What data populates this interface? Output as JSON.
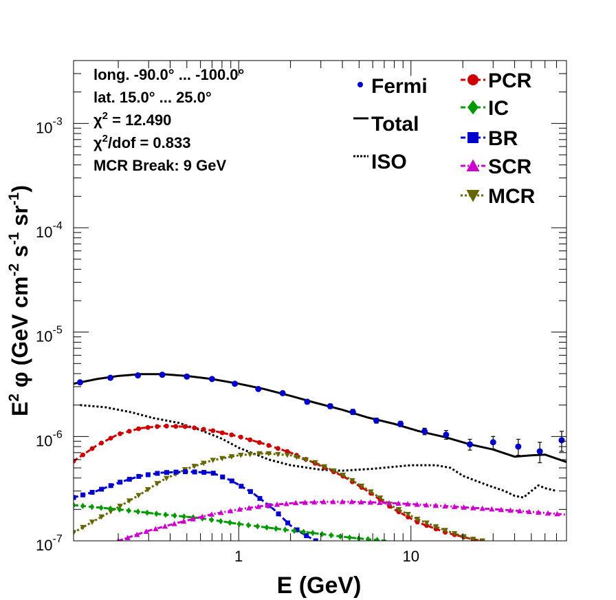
{
  "chart_data": {
    "type": "line",
    "xlabel": "E (GeV)",
    "ylabel_parts": [
      "E",
      "2",
      " φ (GeV cm",
      "-2",
      " s",
      "-1",
      " sr",
      "-1",
      ")"
    ],
    "xscale": "log",
    "yscale": "log",
    "xlim": [
      0.11,
      80
    ],
    "ylim": [
      1e-07,
      0.004
    ],
    "x_tick_labels": [
      {
        "x": 1,
        "label": "1"
      },
      {
        "x": 10,
        "label": "10"
      }
    ],
    "y_tick_labels": [
      {
        "y": 1e-07,
        "base": "10",
        "exp": "-7"
      },
      {
        "y": 1e-06,
        "base": "10",
        "exp": "-6"
      },
      {
        "y": 1e-05,
        "base": "10",
        "exp": "-5"
      },
      {
        "y": 0.0001,
        "base": "10",
        "exp": "-4"
      },
      {
        "y": 0.001,
        "base": "10",
        "exp": "-3"
      }
    ],
    "info_lines": [
      {
        "text": "long. -90.0° ... -100.0°"
      },
      {
        "text": "lat. 15.0° ... 25.0°"
      },
      {
        "text": "χ",
        "sup": "2",
        "rest": " = 12.490"
      },
      {
        "text": "χ",
        "sup": "2",
        "rest": "/dof = 0.833"
      },
      {
        "text": "MCR Break:  9 GeV"
      }
    ],
    "legend_left": [
      {
        "label": "Fermi",
        "style": "dot",
        "color": "#0000cc"
      },
      {
        "label": "Total",
        "style": "solid",
        "color": "#000000"
      },
      {
        "label": "ISO",
        "style": "dotted",
        "color": "#000000"
      }
    ],
    "legend_right": [
      {
        "label": "PCR",
        "style": "circle",
        "color": "#cc0000"
      },
      {
        "label": "IC",
        "style": "diamond",
        "color": "#009900"
      },
      {
        "label": "BR",
        "style": "square",
        "color": "#0000cc"
      },
      {
        "label": "SCR",
        "style": "triangle-up",
        "color": "#cc00cc"
      },
      {
        "label": "MCR",
        "style": "triangle-down",
        "color": "#666600"
      }
    ],
    "fermi": {
      "name": "Fermi",
      "color": "#0000cc",
      "points": [
        {
          "x": 0.12,
          "y": 3.3e-06,
          "err": 1e-07
        },
        {
          "x": 0.18,
          "y": 3.65e-06,
          "err": 1e-07
        },
        {
          "x": 0.26,
          "y": 3.85e-06,
          "err": 1e-07
        },
        {
          "x": 0.36,
          "y": 3.9e-06,
          "err": 1e-07
        },
        {
          "x": 0.5,
          "y": 3.75e-06,
          "err": 1e-07
        },
        {
          "x": 0.7,
          "y": 3.55e-06,
          "err": 1e-07
        },
        {
          "x": 0.95,
          "y": 3.2e-06,
          "err": 1e-07
        },
        {
          "x": 1.3,
          "y": 2.85e-06,
          "err": 1e-07
        },
        {
          "x": 1.8,
          "y": 2.6e-06,
          "err": 1e-07
        },
        {
          "x": 2.5,
          "y": 2.15e-06,
          "err": 1e-07
        },
        {
          "x": 3.4,
          "y": 1.95e-06,
          "err": 1e-07
        },
        {
          "x": 4.6,
          "y": 1.72e-06,
          "err": 1e-07
        },
        {
          "x": 6.3,
          "y": 1.42e-06,
          "err": 8e-08
        },
        {
          "x": 8.7,
          "y": 1.32e-06,
          "err": 8e-08
        },
        {
          "x": 12,
          "y": 1.12e-06,
          "err": 8e-08
        },
        {
          "x": 16,
          "y": 1.04e-06,
          "err": 1e-07
        },
        {
          "x": 22,
          "y": 8.4e-07,
          "err": 1e-07
        },
        {
          "x": 30,
          "y": 8.8e-07,
          "err": 1.2e-07
        },
        {
          "x": 42,
          "y": 8e-07,
          "err": 1.4e-07
        },
        {
          "x": 56,
          "y": 7.2e-07,
          "err": 1.6e-07
        },
        {
          "x": 75,
          "y": 9.2e-07,
          "err": 2e-07
        }
      ]
    },
    "series": [
      {
        "name": "Total",
        "color": "#000000",
        "dash": "",
        "width": 3,
        "marker": "none",
        "x": [
          0.11,
          0.15,
          0.2,
          0.27,
          0.36,
          0.5,
          0.7,
          1.0,
          1.4,
          2.0,
          2.8,
          4.0,
          5.6,
          8.0,
          11,
          16,
          22,
          30,
          40,
          50,
          60,
          80
        ],
        "y": [
          3.2e-06,
          3.55e-06,
          3.8e-06,
          3.95e-06,
          3.95e-06,
          3.8e-06,
          3.55e-06,
          3.2e-06,
          2.85e-06,
          2.45e-06,
          2.1e-06,
          1.8e-06,
          1.52e-06,
          1.32e-06,
          1.13e-06,
          9.8e-07,
          8.4e-07,
          7.5e-07,
          6.4e-07,
          6.6e-07,
          6.7e-07,
          5.7e-07
        ]
      },
      {
        "name": "ISO",
        "color": "#000000",
        "dash": "3,3",
        "width": 3,
        "marker": "none",
        "x": [
          0.12,
          0.17,
          0.24,
          0.32,
          0.45,
          0.6,
          0.8,
          1.0,
          1.5,
          2.0,
          3.0,
          4.0,
          6.0,
          10,
          14,
          17,
          20,
          28,
          35,
          40,
          45,
          50,
          55,
          60,
          70
        ],
        "y": [
          2e-06,
          1.9e-06,
          1.7e-06,
          1.5e-06,
          1.35e-06,
          1.15e-06,
          9.5e-07,
          7.8e-07,
          6e-07,
          5.3e-07,
          4.8e-07,
          4.7e-07,
          4.9e-07,
          5.3e-07,
          5.3e-07,
          5e-07,
          4.2e-07,
          3.4e-07,
          3e-07,
          2.7e-07,
          2.6e-07,
          3e-07,
          3.4e-07,
          3.2e-07,
          3e-07
        ]
      },
      {
        "name": "PCR",
        "color": "#cc0000",
        "dash": "7,4",
        "width": 3,
        "marker": "circle",
        "x": [
          0.11,
          0.15,
          0.2,
          0.27,
          0.36,
          0.5,
          0.7,
          1.0,
          1.4,
          2.0,
          2.8,
          4.0,
          5.6,
          8.0,
          11,
          16,
          22,
          26
        ],
        "y": [
          5.8e-07,
          8.2e-07,
          1.05e-06,
          1.2e-06,
          1.26e-06,
          1.24e-06,
          1.14e-06,
          1e-06,
          8.5e-07,
          7e-07,
          5.5e-07,
          4.2e-07,
          3e-07,
          2e-07,
          1.5e-07,
          1.2e-07,
          1.05e-07,
          1e-07
        ]
      },
      {
        "name": "MCR",
        "color": "#666600",
        "dash": "3,3",
        "width": 3,
        "marker": "triangle-down",
        "x": [
          0.11,
          0.15,
          0.2,
          0.27,
          0.36,
          0.5,
          0.7,
          1.0,
          1.4,
          2.0,
          2.8,
          4.0,
          5.6,
          8.0,
          11,
          16,
          22,
          26
        ],
        "y": [
          1.2e-07,
          1.6e-07,
          2.1e-07,
          2.8e-07,
          3.8e-07,
          4.9e-07,
          5.9e-07,
          6.6e-07,
          6.9e-07,
          6.6e-07,
          5.6e-07,
          4.3e-07,
          3.1e-07,
          2.1e-07,
          1.6e-07,
          1.25e-07,
          1.05e-07,
          1e-07
        ]
      },
      {
        "name": "BR",
        "color": "#0000cc",
        "dash": "7,4",
        "width": 3,
        "marker": "square",
        "x": [
          0.11,
          0.15,
          0.2,
          0.27,
          0.36,
          0.5,
          0.7,
          0.9,
          1.2,
          1.6,
          2.0,
          2.4,
          2.8
        ],
        "y": [
          2.6e-07,
          3e-07,
          3.6e-07,
          4.2e-07,
          4.5e-07,
          4.6e-07,
          4.5e-07,
          3.8e-07,
          2.9e-07,
          2e-07,
          1.4e-07,
          1.15e-07,
          1e-07
        ]
      },
      {
        "name": "IC",
        "color": "#009900",
        "dash": "7,4",
        "width": 3,
        "marker": "diamond",
        "x": [
          0.11,
          0.2,
          0.35,
          0.6,
          1.0,
          1.7,
          2.8,
          4.5,
          7.2
        ],
        "y": [
          2.2e-07,
          2e-07,
          1.8e-07,
          1.65e-07,
          1.45e-07,
          1.3e-07,
          1.18e-07,
          1.07e-07,
          1e-07
        ]
      },
      {
        "name": "SCR",
        "color": "#cc00cc",
        "dash": "7,3,2,3",
        "width": 3,
        "marker": "triangle-up",
        "x": [
          0.2,
          0.3,
          0.45,
          0.7,
          1.0,
          1.5,
          2.2,
          3.2,
          4.5,
          7.0,
          10,
          16,
          25,
          40,
          60,
          80
        ],
        "y": [
          1e-07,
          1.25e-07,
          1.5e-07,
          1.8e-07,
          2e-07,
          2.2e-07,
          2.32e-07,
          2.37e-07,
          2.37e-07,
          2.32e-07,
          2.25e-07,
          2.15e-07,
          2.05e-07,
          1.95e-07,
          1.85e-07,
          1.78e-07
        ]
      }
    ]
  }
}
